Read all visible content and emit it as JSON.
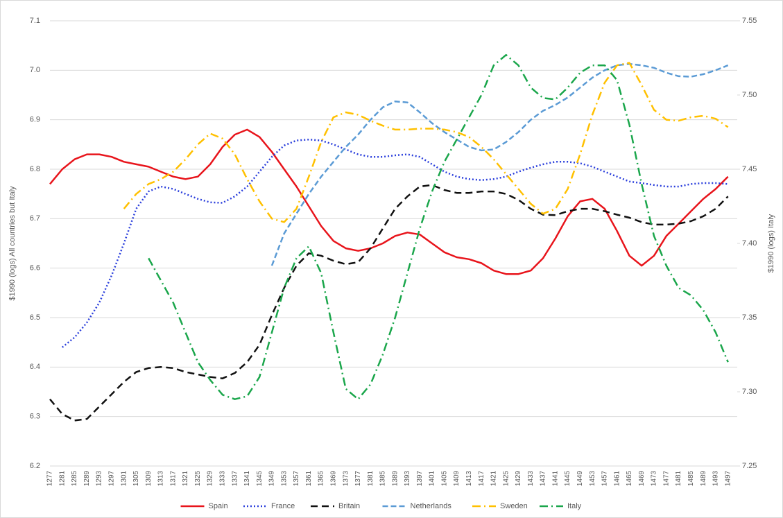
{
  "chart_data": {
    "type": "line",
    "y_label": "$1990 (logs) All countries but Italy",
    "y2_label": "$1990 (logs) Italy",
    "x": [
      1277,
      1281,
      1285,
      1289,
      1293,
      1297,
      1301,
      1305,
      1309,
      1313,
      1317,
      1321,
      1325,
      1329,
      1333,
      1337,
      1341,
      1345,
      1349,
      1353,
      1357,
      1361,
      1365,
      1369,
      1373,
      1377,
      1381,
      1385,
      1389,
      1393,
      1397,
      1401,
      1405,
      1409,
      1413,
      1417,
      1421,
      1425,
      1429,
      1433,
      1437,
      1441,
      1445,
      1449,
      1453,
      1457,
      1461,
      1465,
      1469,
      1473,
      1477,
      1481,
      1485,
      1489,
      1493,
      1497
    ],
    "xlim": [
      1277,
      1500
    ],
    "ylim": [
      6.2,
      7.1
    ],
    "yticks": [
      6.2,
      6.3,
      6.4,
      6.5,
      6.6,
      6.7,
      6.8,
      6.9,
      {
        "value": 7,
        "label": "7.0"
      },
      7.1
    ],
    "y2lim": [
      7.25,
      7.55
    ],
    "y2ticks": [
      7.25,
      {
        "value": 7.3,
        "label": "7.30"
      },
      7.35,
      {
        "value": 7.4,
        "label": "7.40"
      },
      7.45,
      {
        "value": 7.5,
        "label": "7.50"
      },
      7.55
    ],
    "grid": true,
    "legend": "bottom",
    "series": [
      {
        "name": "Spain",
        "color": "#e8141b",
        "dash": "solid",
        "values": [
          6.77,
          6.8,
          6.82,
          6.83,
          6.83,
          6.825,
          6.815,
          6.81,
          6.805,
          6.795,
          6.785,
          6.78,
          6.785,
          6.81,
          6.845,
          6.87,
          6.88,
          6.865,
          6.835,
          6.8,
          6.765,
          6.725,
          6.685,
          6.655,
          6.64,
          6.635,
          6.64,
          6.65,
          6.665,
          6.672,
          6.668,
          6.65,
          6.632,
          6.622,
          6.618,
          6.61,
          6.595,
          6.588,
          6.588,
          6.595,
          6.62,
          6.66,
          6.705,
          6.735,
          6.74,
          6.72,
          6.675,
          6.625,
          6.605,
          6.625,
          6.665,
          6.69,
          6.715,
          6.74,
          6.76,
          6.785
        ]
      },
      {
        "name": "France",
        "color": "#2b3fdc",
        "dash": "dotted",
        "values": [
          null,
          6.44,
          6.46,
          6.49,
          6.53,
          6.585,
          6.65,
          6.72,
          6.755,
          6.765,
          6.76,
          6.75,
          6.74,
          6.733,
          6.732,
          6.745,
          6.765,
          6.795,
          6.825,
          6.848,
          6.858,
          6.86,
          6.858,
          6.85,
          6.84,
          6.83,
          6.825,
          6.825,
          6.828,
          6.83,
          6.825,
          6.81,
          6.795,
          6.785,
          6.78,
          6.778,
          6.78,
          6.785,
          6.795,
          6.803,
          6.81,
          6.815,
          6.815,
          6.812,
          6.805,
          6.795,
          6.785,
          6.775,
          6.772,
          6.768,
          6.765,
          6.765,
          6.77,
          6.772,
          6.772,
          6.77
        ]
      },
      {
        "name": "Britain",
        "color": "#111111",
        "dash": "dashed",
        "values": [
          6.335,
          6.305,
          6.292,
          6.295,
          6.32,
          6.345,
          6.37,
          6.39,
          6.398,
          6.4,
          6.398,
          6.39,
          6.385,
          6.38,
          6.377,
          6.388,
          6.41,
          6.445,
          6.505,
          6.56,
          6.605,
          6.63,
          6.625,
          6.615,
          6.608,
          6.612,
          6.64,
          6.68,
          6.72,
          6.745,
          6.765,
          6.768,
          6.758,
          6.752,
          6.752,
          6.755,
          6.755,
          6.75,
          6.738,
          6.72,
          6.708,
          6.707,
          6.715,
          6.72,
          6.72,
          6.715,
          6.708,
          6.702,
          6.693,
          6.688,
          6.688,
          6.69,
          6.695,
          6.705,
          6.72,
          6.745
        ]
      },
      {
        "name": "Netherlands",
        "color": "#5b9bd5",
        "dash": "longdash",
        "values": [
          null,
          null,
          null,
          null,
          null,
          null,
          null,
          null,
          null,
          null,
          null,
          null,
          null,
          null,
          null,
          null,
          null,
          null,
          6.605,
          6.67,
          6.71,
          6.75,
          6.785,
          6.815,
          6.845,
          6.87,
          6.9,
          6.925,
          6.937,
          6.935,
          6.915,
          6.893,
          6.875,
          6.86,
          6.845,
          6.838,
          6.84,
          6.855,
          6.875,
          6.9,
          6.918,
          6.93,
          6.945,
          6.965,
          6.985,
          7.0,
          7.01,
          7.013,
          7.01,
          7.005,
          6.995,
          6.988,
          6.987,
          6.992,
          7.0,
          7.01
        ]
      },
      {
        "name": "Sweden",
        "color": "#ffc000",
        "dash": "dashdot",
        "values": [
          null,
          null,
          null,
          null,
          null,
          null,
          6.72,
          6.75,
          6.77,
          6.78,
          6.795,
          6.82,
          6.85,
          6.872,
          6.862,
          6.83,
          6.78,
          6.735,
          6.7,
          6.693,
          6.72,
          6.785,
          6.855,
          6.905,
          6.915,
          6.91,
          6.898,
          6.888,
          6.88,
          6.88,
          6.882,
          6.882,
          6.88,
          6.875,
          6.865,
          6.845,
          6.82,
          6.79,
          6.76,
          6.73,
          6.71,
          6.72,
          6.76,
          6.83,
          6.91,
          6.975,
          7.01,
          7.015,
          6.97,
          6.92,
          6.9,
          6.898,
          6.905,
          6.908,
          6.902,
          6.885
        ]
      },
      {
        "name": "Italy",
        "color": "#1aa64b",
        "dash": "dashdot",
        "axis": "y2",
        "values": [
          null,
          null,
          null,
          null,
          null,
          null,
          null,
          null,
          7.39,
          7.375,
          7.36,
          7.34,
          7.32,
          7.308,
          7.298,
          7.295,
          7.297,
          7.31,
          7.34,
          7.37,
          7.39,
          7.398,
          7.38,
          7.34,
          7.302,
          7.295,
          7.305,
          7.325,
          7.35,
          7.38,
          7.41,
          7.435,
          7.455,
          7.47,
          7.485,
          7.5,
          7.52,
          7.527,
          7.52,
          7.505,
          7.498,
          7.497,
          7.505,
          7.515,
          7.52,
          7.52,
          7.51,
          7.48,
          7.44,
          7.405,
          7.385,
          7.37,
          7.365,
          7.355,
          7.34,
          7.32
        ]
      }
    ]
  }
}
